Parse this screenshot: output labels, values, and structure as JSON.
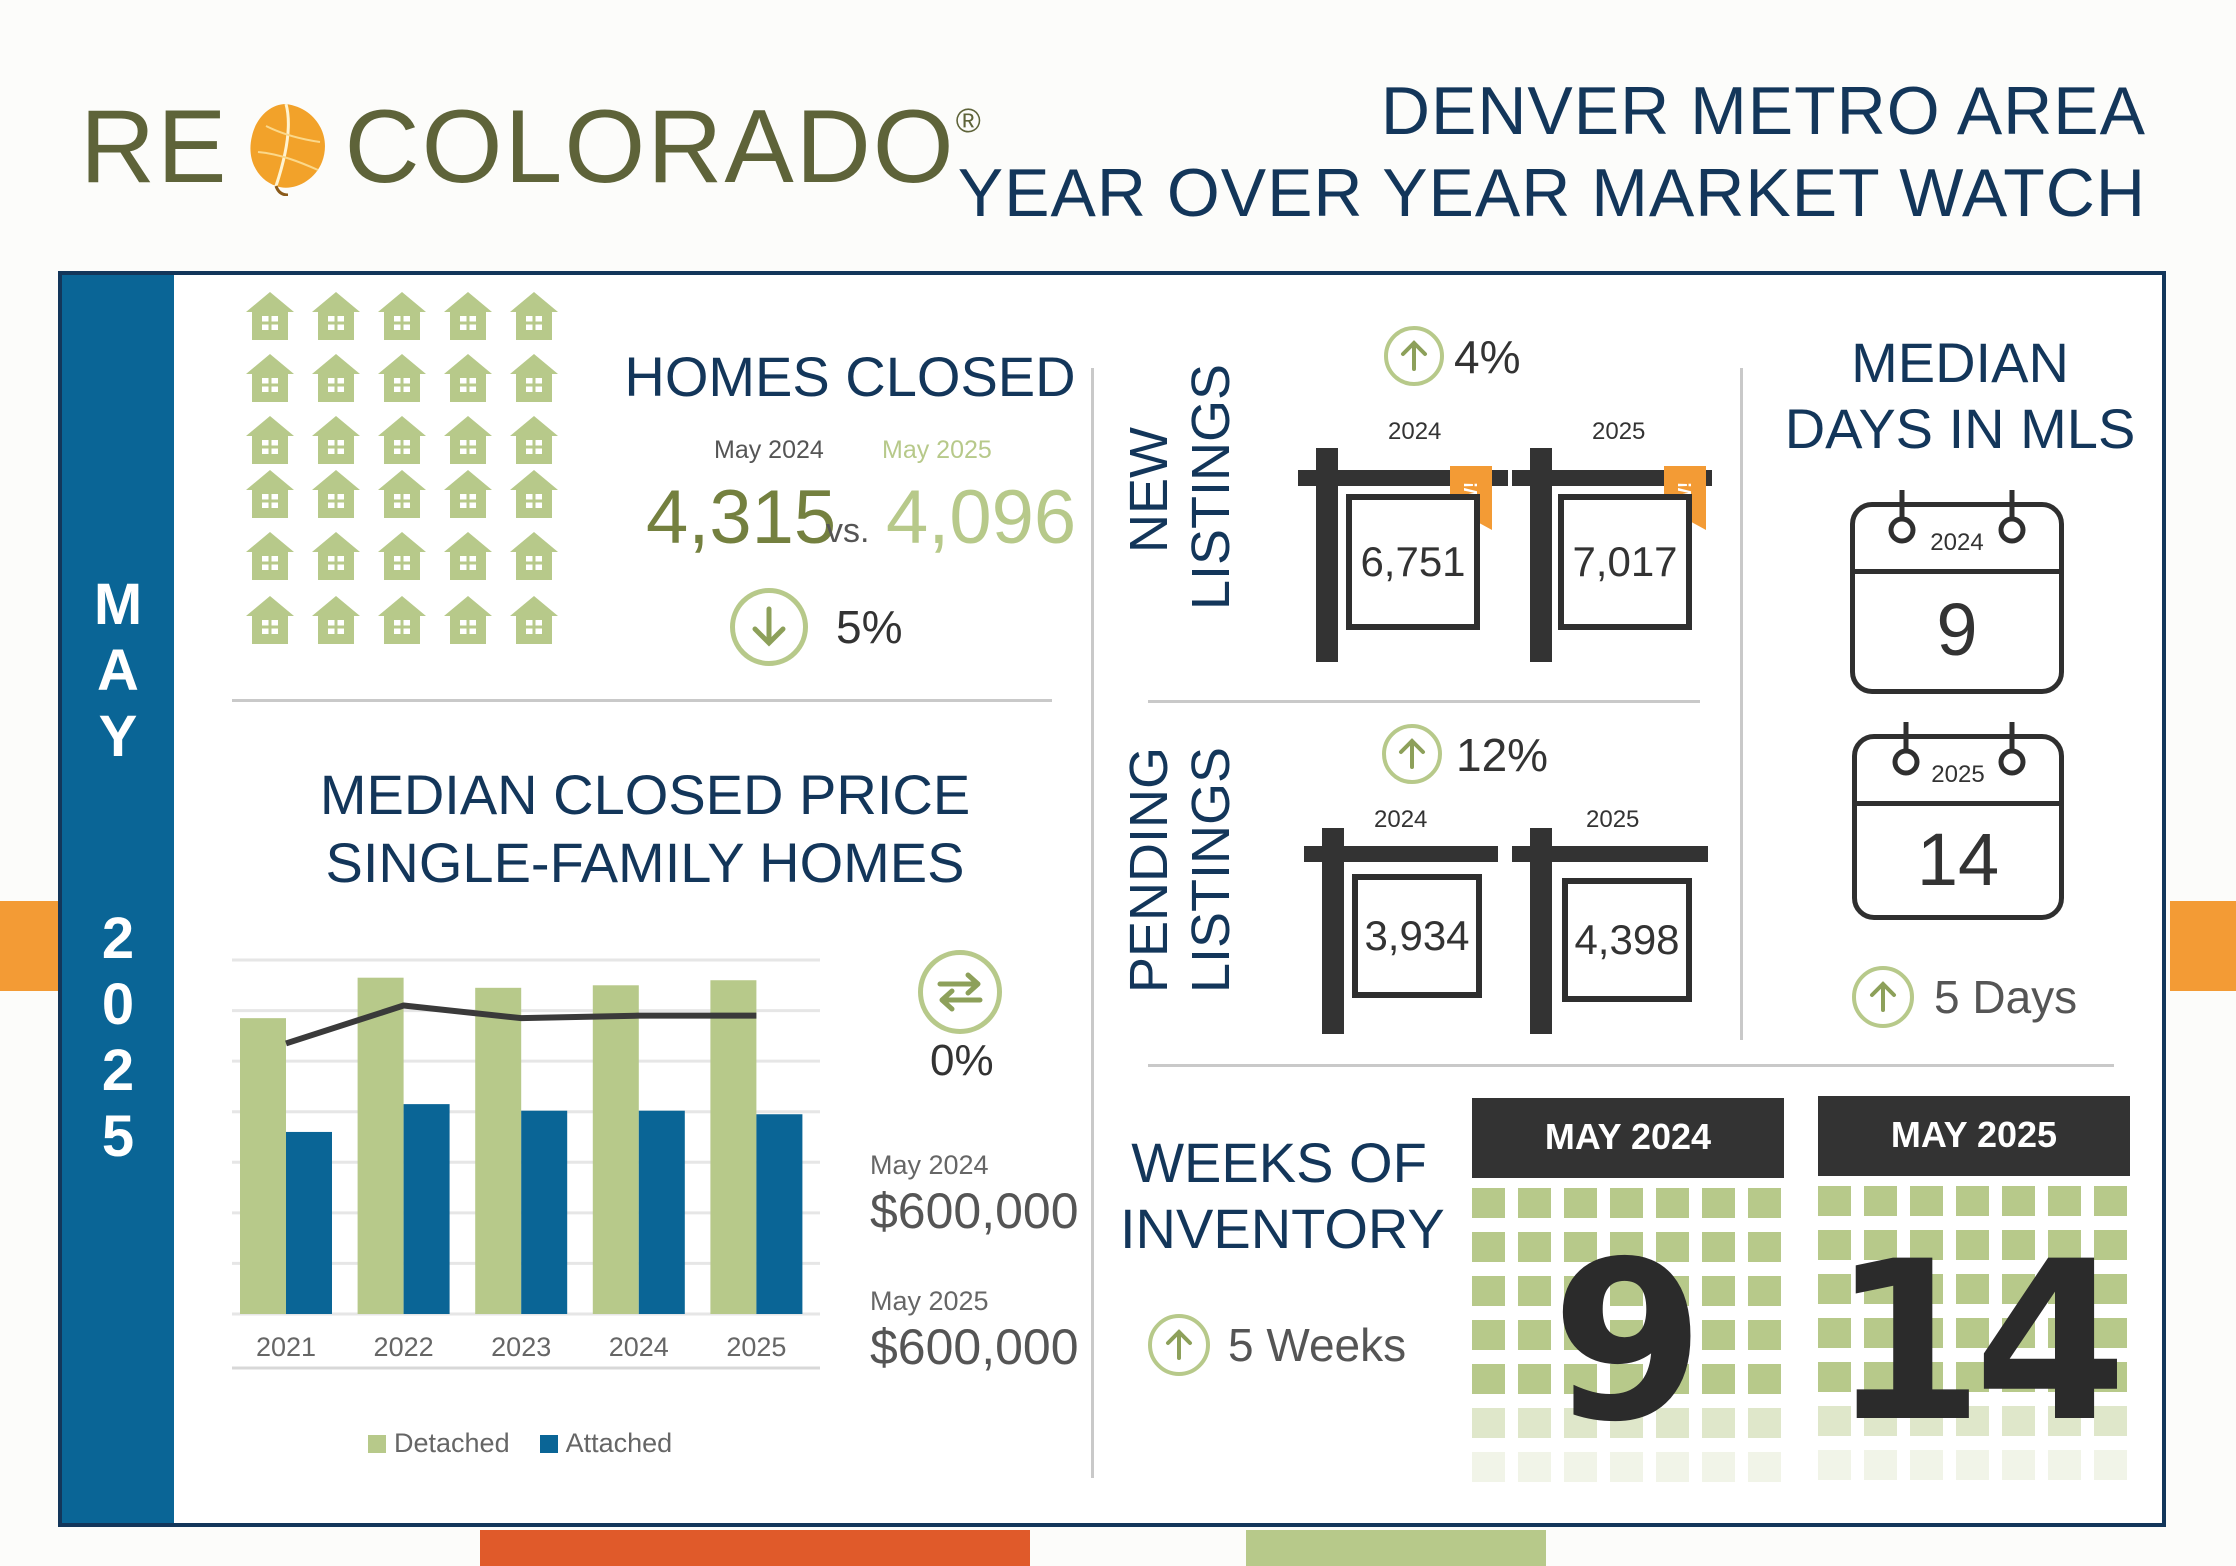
{
  "header": {
    "logo_re": "RE",
    "logo_colorado": "COLORADO",
    "logo_reg": "®",
    "title_line1": "DENVER METRO AREA",
    "title_line2": "YEAR OVER YEAR MARKET WATCH"
  },
  "sidebar": {
    "month_letters": [
      "M",
      "A",
      "Y"
    ],
    "year_digits": [
      "2",
      "0",
      "2",
      "5"
    ]
  },
  "homes_closed": {
    "title": "HOMES CLOSED",
    "label_2024": "May 2024",
    "label_2025": "May 2025",
    "value_2024": "4,315",
    "vs": "vs.",
    "value_2025": "4,096",
    "change": "5%",
    "direction": "down",
    "house_icons": 30
  },
  "median_price": {
    "title_line1": "MEDIAN CLOSED PRICE",
    "title_line2": "SINGLE-FAMILY HOMES",
    "change": "0%",
    "label_2024": "May 2024",
    "value_2024": "$600,000",
    "label_2025": "May 2025",
    "value_2025": "$600,000"
  },
  "chart_data": {
    "type": "bar",
    "categories": [
      "2021",
      "2022",
      "2023",
      "2024",
      "2025"
    ],
    "series": [
      {
        "name": "Detached",
        "values": [
          585,
          665,
          645,
          650,
          660
        ],
        "color": "#b7c98a"
      },
      {
        "name": "Attached",
        "values": [
          360,
          415,
          402,
          402,
          395
        ],
        "color": "#0a6596"
      }
    ],
    "trend_line": {
      "values": [
        535,
        610,
        585,
        590,
        590
      ],
      "color": "#3a3a3a"
    },
    "ylim": [
      0,
      700
    ],
    "grid": true,
    "legend": "bottom"
  },
  "new_listings": {
    "title_line1": "NEW",
    "title_line2": "LISTINGS",
    "change": "4%",
    "direction": "up",
    "year_2024": "2024",
    "year_2025": "2025",
    "value_2024": "6,751",
    "value_2025": "7,017",
    "badge": "NEW!"
  },
  "pending_listings": {
    "title_line1": "PENDING",
    "title_line2": "LISTINGS",
    "change": "12%",
    "direction": "up",
    "year_2024": "2024",
    "year_2025": "2025",
    "value_2024": "3,934",
    "value_2025": "4,398"
  },
  "days_in_mls": {
    "title_line1": "MEDIAN",
    "title_line2": "DAYS IN MLS",
    "year_2024": "2024",
    "value_2024": "9",
    "year_2025": "2025",
    "value_2025": "14",
    "change": "5 Days",
    "direction": "up"
  },
  "weeks_inventory": {
    "title_line1": "WEEKS OF",
    "title_line2": "INVENTORY",
    "change": "5 Weeks",
    "direction": "up",
    "head_2024": "MAY 2024",
    "value_2024": "9",
    "head_2025": "MAY 2025",
    "value_2025": "14"
  },
  "colors": {
    "navy": "#13365a",
    "blue": "#0a6596",
    "green": "#b7c98a",
    "orange": "#f39b35",
    "red_orange": "#e05a2a"
  }
}
